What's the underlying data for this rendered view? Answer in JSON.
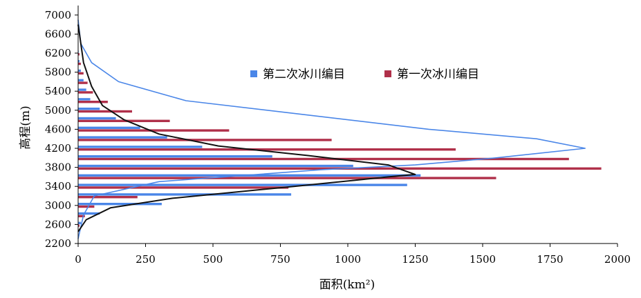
{
  "chart_data": {
    "type": "bar",
    "orientation": "horizontal",
    "title": "",
    "xlabel": "面积(km²)",
    "ylabel": "高程(m)",
    "xlim": [
      0,
      2000
    ],
    "ylim": [
      2200,
      7200
    ],
    "x_ticks": [
      0,
      250,
      500,
      750,
      1000,
      1250,
      1500,
      1750,
      2000
    ],
    "y_ticks": [
      2200,
      2600,
      3000,
      3400,
      3800,
      4200,
      4600,
      5000,
      5400,
      5800,
      6200,
      6600,
      7000
    ],
    "grid": false,
    "legend_position": "right-center",
    "elevation_bins": [
      2600,
      2800,
      3000,
      3200,
      3400,
      3600,
      3800,
      4000,
      4200,
      4400,
      4600,
      4800,
      5000,
      5200,
      5400,
      5600,
      5800,
      6000,
      6200
    ],
    "series": [
      {
        "name": "第二次冰川编目",
        "color": "#4a86e8",
        "values": [
          10,
          80,
          310,
          790,
          1220,
          1270,
          1020,
          720,
          460,
          330,
          230,
          140,
          80,
          45,
          30,
          20,
          10,
          5,
          2
        ]
      },
      {
        "name": "第一次冰川编目",
        "color": "#b0304a",
        "values": [
          5,
          25,
          60,
          220,
          780,
          1550,
          1940,
          1820,
          1400,
          940,
          560,
          340,
          200,
          110,
          55,
          35,
          20,
          10,
          5
        ]
      }
    ],
    "curves": [
      {
        "color": "#4a86e8",
        "points": [
          [
            0,
            2300
          ],
          [
            20,
            2800
          ],
          [
            60,
            3200
          ],
          [
            300,
            3500
          ],
          [
            900,
            3750
          ],
          [
            1250,
            3850
          ],
          [
            1550,
            4000
          ],
          [
            1880,
            4200
          ],
          [
            1700,
            4400
          ],
          [
            1300,
            4600
          ],
          [
            850,
            4900
          ],
          [
            400,
            5200
          ],
          [
            150,
            5600
          ],
          [
            50,
            6000
          ],
          [
            10,
            6400
          ],
          [
            0,
            6900
          ]
        ]
      },
      {
        "color": "#111111",
        "points": [
          [
            0,
            2450
          ],
          [
            30,
            2700
          ],
          [
            120,
            2950
          ],
          [
            350,
            3150
          ],
          [
            800,
            3400
          ],
          [
            1150,
            3600
          ],
          [
            1250,
            3650
          ],
          [
            1150,
            3850
          ],
          [
            850,
            4050
          ],
          [
            520,
            4250
          ],
          [
            300,
            4500
          ],
          [
            170,
            4800
          ],
          [
            90,
            5100
          ],
          [
            50,
            5500
          ],
          [
            20,
            6000
          ],
          [
            0,
            6800
          ]
        ]
      }
    ]
  }
}
